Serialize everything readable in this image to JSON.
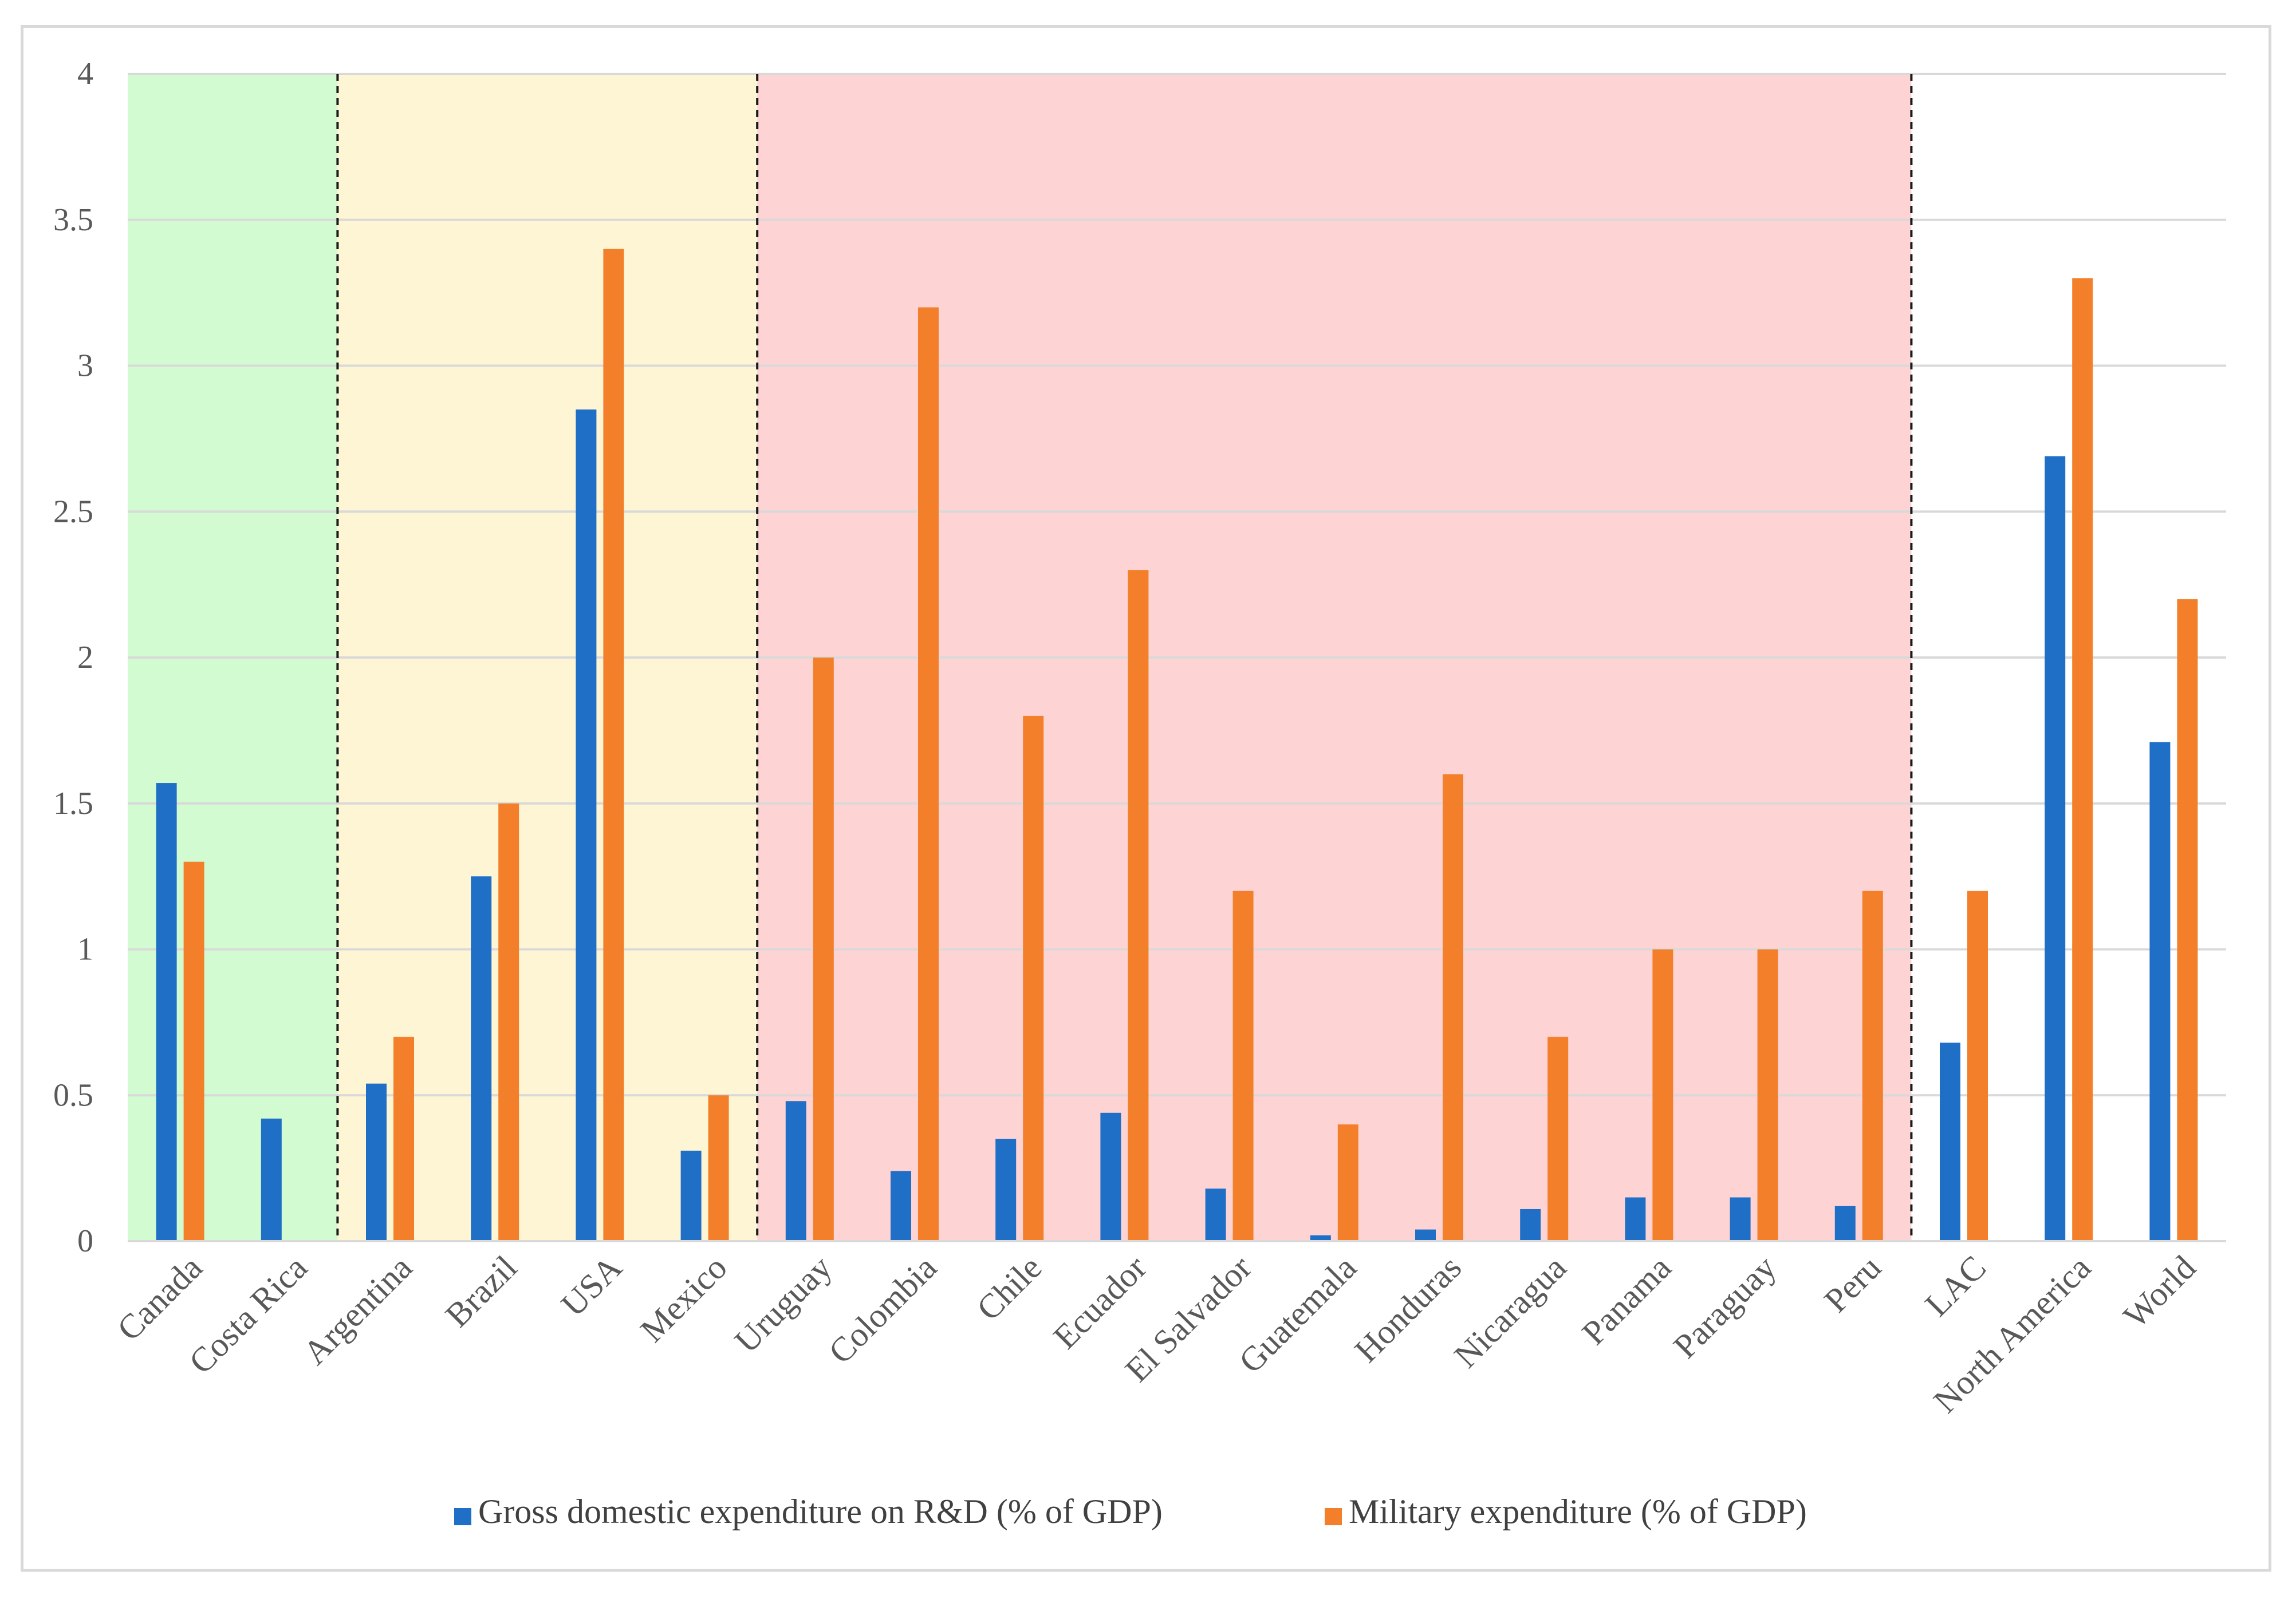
{
  "chart_data": {
    "type": "bar",
    "title": "",
    "xlabel": "",
    "ylabel": "",
    "ylim": [
      0,
      4
    ],
    "yticks": [
      "0",
      "0.5",
      "1",
      "1.5",
      "2",
      "2.5",
      "3",
      "3.5",
      "4"
    ],
    "grid": true,
    "legend_position": "bottom-center",
    "categories": [
      "Canada",
      "Costa Rica",
      "Argentina",
      "Brazil",
      "USA",
      "Mexico",
      "Uruguay",
      "Colombia",
      "Chile",
      "Ecuador",
      "El Salvador",
      "Guatemala",
      "Honduras",
      "Nicaragua",
      "Panama",
      "Paraguay",
      "Peru",
      "LAC",
      "North America",
      "World"
    ],
    "series": [
      {
        "name": "Gross domestic expenditure on R&D (% of GDP)",
        "color": "#1f6fc6",
        "values": [
          1.57,
          0.42,
          0.54,
          1.25,
          2.85,
          0.31,
          0.48,
          0.24,
          0.35,
          0.44,
          0.18,
          0.02,
          0.04,
          0.11,
          0.15,
          0.15,
          0.12,
          0.68,
          2.69,
          1.71
        ]
      },
      {
        "name": "Military expenditure (% of GDP)",
        "color": "#f47f2a",
        "values": [
          1.3,
          null,
          0.7,
          1.5,
          3.4,
          0.5,
          2.0,
          3.2,
          1.8,
          2.3,
          1.2,
          0.4,
          1.6,
          0.7,
          1.0,
          1.0,
          1.2,
          1.2,
          3.3,
          2.2
        ]
      }
    ],
    "regions": [
      {
        "from": 0,
        "to": 1,
        "color": "#d3fbd1"
      },
      {
        "from": 2,
        "to": 5,
        "color": "#fdf5d3"
      },
      {
        "from": 6,
        "to": 16,
        "color": "#fed3d3"
      }
    ],
    "dividers_after": [
      1,
      5,
      16
    ]
  }
}
